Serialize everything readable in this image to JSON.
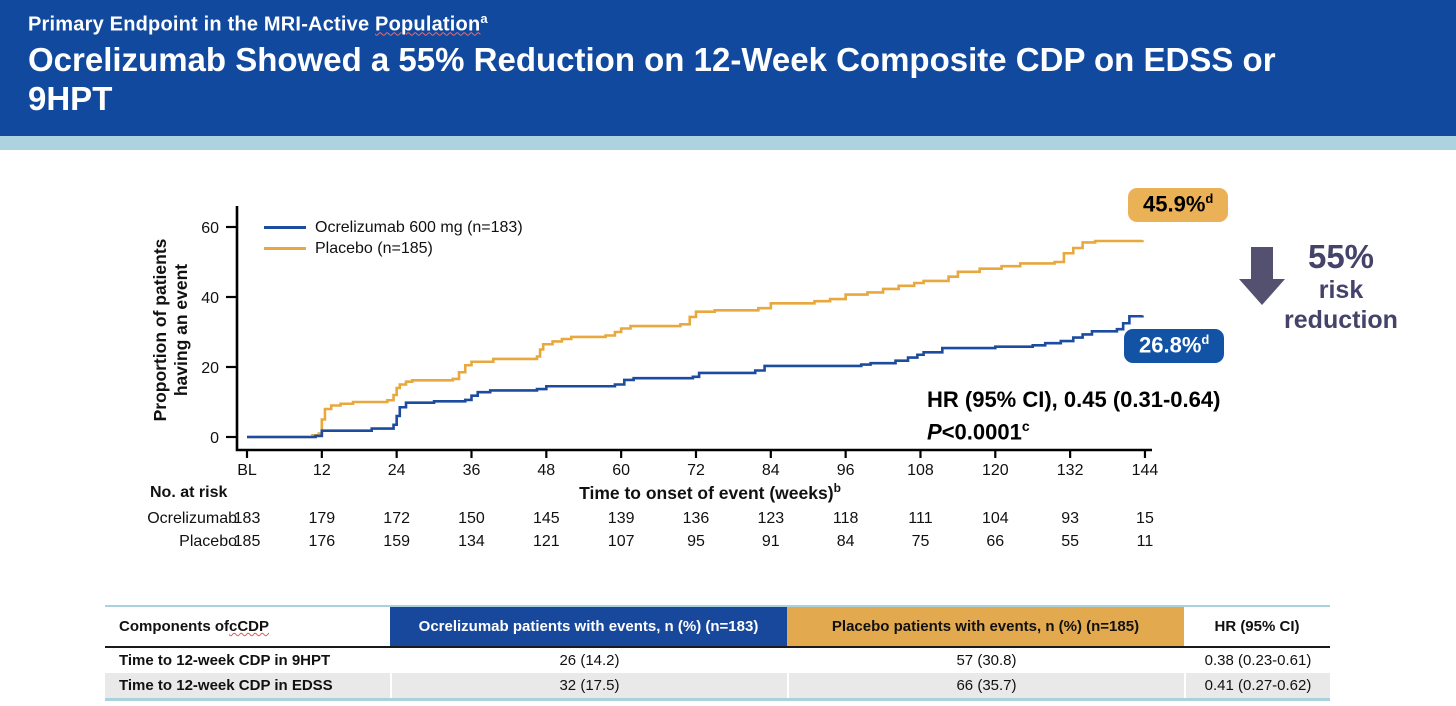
{
  "header": {
    "kicker_text": "Primary Endpoint in the MRI-Active ",
    "kicker_word": "Population",
    "kicker_sup": "a",
    "title": "Ocrelizumab Showed a 55% Reduction on 12-Week Composite CDP on EDSS or 9HPT"
  },
  "colors": {
    "header_bg": "#10499d",
    "stripe": "#aed3e0",
    "curve_ocrelizumab": "#1b4c9f",
    "curve_placebo": "#e8a83e",
    "badge_gold": "#ebb156",
    "badge_blue": "#1253a6",
    "table_header_blue": "#17489c",
    "table_header_gold": "#e2a94f",
    "arrow": "#535070",
    "risk_text": "#45436a",
    "row_alt": "#e9e9e9",
    "table_border": "#a9d2de"
  },
  "chart_data": {
    "type": "line",
    "step": true,
    "xlabel": "Time to onset of event (weeks)",
    "xlabel_sup": "b",
    "ylabel": "Proportion of patients having an event",
    "ylim": [
      0,
      65
    ],
    "xticks": [
      "BL",
      "12",
      "24",
      "36",
      "48",
      "60",
      "72",
      "84",
      "96",
      "108",
      "120",
      "132",
      "144"
    ],
    "yticks": [
      0,
      20,
      40,
      60
    ],
    "grid": false,
    "legend_position": "top-left",
    "series": [
      {
        "name": "Ocrelizumab 600 mg (n=183)",
        "key": "ocrelizumab",
        "color": "#1b4c9f",
        "points": [
          [
            0,
            0
          ],
          [
            11,
            0.3
          ],
          [
            12,
            1.8
          ],
          [
            20,
            2.4
          ],
          [
            23.5,
            3.5
          ],
          [
            24,
            6
          ],
          [
            24.5,
            8.5
          ],
          [
            25.5,
            9.8
          ],
          [
            30,
            10.2
          ],
          [
            35,
            10.6
          ],
          [
            36,
            11.8
          ],
          [
            37,
            12.8
          ],
          [
            39,
            13.3
          ],
          [
            46.5,
            13.7
          ],
          [
            48,
            14.5
          ],
          [
            59,
            15
          ],
          [
            60.5,
            16.3
          ],
          [
            62,
            16.8
          ],
          [
            71.5,
            17.2
          ],
          [
            72.5,
            18.3
          ],
          [
            81.5,
            19
          ],
          [
            83,
            20.3
          ],
          [
            98.5,
            20.7
          ],
          [
            100,
            21.1
          ],
          [
            104,
            21.8
          ],
          [
            106,
            22.7
          ],
          [
            107.5,
            23.5
          ],
          [
            108.5,
            24.2
          ],
          [
            111.5,
            25.4
          ],
          [
            120,
            25.8
          ],
          [
            126,
            26.2
          ],
          [
            128,
            26.8
          ],
          [
            130.5,
            27.4
          ],
          [
            132.5,
            28.4
          ],
          [
            134,
            29.3
          ],
          [
            135.5,
            30.2
          ],
          [
            139.5,
            30.8
          ],
          [
            140.5,
            32.5
          ],
          [
            141.5,
            34.5
          ],
          [
            143.6,
            34.7
          ]
        ]
      },
      {
        "name": "Placebo (n=185)",
        "key": "placebo",
        "color": "#e8a83e",
        "points": [
          [
            0,
            0
          ],
          [
            10.5,
            0.5
          ],
          [
            11.5,
            1
          ],
          [
            12,
            5
          ],
          [
            12.5,
            8
          ],
          [
            13.5,
            9
          ],
          [
            15,
            9.5
          ],
          [
            17,
            10
          ],
          [
            22.5,
            10.5
          ],
          [
            23.5,
            12
          ],
          [
            24,
            14
          ],
          [
            24.5,
            15
          ],
          [
            25.5,
            15.8
          ],
          [
            26.5,
            16.2
          ],
          [
            33,
            16.6
          ],
          [
            34,
            18.5
          ],
          [
            35,
            20.5
          ],
          [
            36,
            21.5
          ],
          [
            39.5,
            22.3
          ],
          [
            46.5,
            23
          ],
          [
            47,
            25
          ],
          [
            47.5,
            26.5
          ],
          [
            49,
            27.3
          ],
          [
            50.5,
            28
          ],
          [
            52,
            28.6
          ],
          [
            57.5,
            29
          ],
          [
            59,
            30
          ],
          [
            60,
            31
          ],
          [
            61.5,
            31.7
          ],
          [
            69.5,
            32.2
          ],
          [
            71,
            34.3
          ],
          [
            72,
            35.8
          ],
          [
            75,
            36.2
          ],
          [
            82,
            36.8
          ],
          [
            84,
            38.2
          ],
          [
            91,
            38.8
          ],
          [
            93.5,
            39.4
          ],
          [
            96,
            40.7
          ],
          [
            99.5,
            41.3
          ],
          [
            102,
            42.3
          ],
          [
            104.5,
            43.2
          ],
          [
            107,
            44
          ],
          [
            108.5,
            44.6
          ],
          [
            112.5,
            45.8
          ],
          [
            114,
            47.2
          ],
          [
            117.5,
            48.1
          ],
          [
            121,
            48.8
          ],
          [
            124,
            49.6
          ],
          [
            129.5,
            50
          ],
          [
            131,
            52.5
          ],
          [
            132.5,
            54
          ],
          [
            134,
            55.6
          ],
          [
            136,
            56
          ],
          [
            143.6,
            56.2
          ]
        ]
      }
    ]
  },
  "at_risk": {
    "title": "No. at risk",
    "rows": [
      {
        "label": "Ocrelizumab",
        "values": [
          183,
          179,
          172,
          150,
          145,
          139,
          136,
          123,
          118,
          111,
          104,
          93,
          15
        ]
      },
      {
        "label": "Placebo",
        "values": [
          185,
          176,
          159,
          134,
          121,
          107,
          95,
          91,
          84,
          75,
          66,
          55,
          11
        ]
      }
    ]
  },
  "annotations": {
    "placebo_end_value": "45.9%",
    "placebo_end_sup": "d",
    "ocrelizumab_end_value": "26.8%",
    "ocrelizumab_end_sup": "d",
    "hr_line": "HR (95% CI), 0.45 (0.31-0.64)",
    "p_italic": "P",
    "p_body": "<0.0001",
    "p_sup": "c",
    "risk_value": "55%",
    "risk_word1": "risk",
    "risk_word2": "reduction"
  },
  "table": {
    "header": {
      "col1_prefix": "Components of ",
      "col1_word": "cCDP",
      "col2": "Ocrelizumab patients with events, n (%) (n=183)",
      "col3": "Placebo patients with events, n (%) (n=185)",
      "col4": "HR (95% CI)"
    },
    "rows": [
      {
        "component": "Time to 12-week CDP in 9HPT",
        "ocrelizumab": "26 (14.2)",
        "placebo": "57 (30.8)",
        "hr": "0.38 (0.23-0.61)"
      },
      {
        "component": "Time to 12-week CDP in EDSS",
        "ocrelizumab": "32 (17.5)",
        "placebo": "66 (35.7)",
        "hr": "0.41 (0.27-0.62)"
      }
    ]
  }
}
